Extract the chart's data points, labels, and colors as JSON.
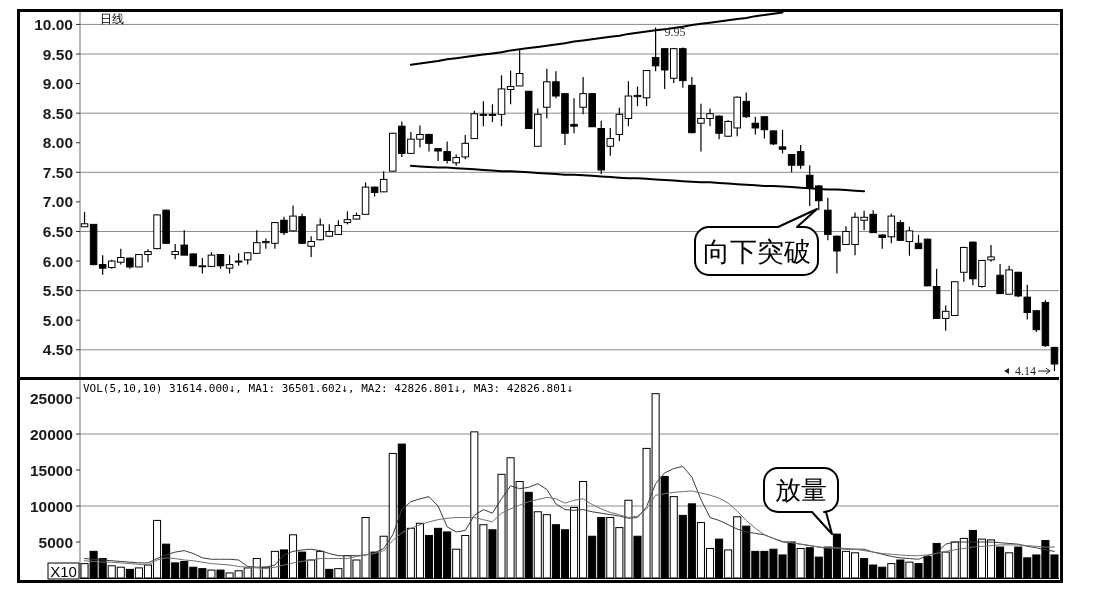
{
  "chart_data": [
    {
      "type": "candlestick",
      "title": "日线",
      "categories": [
        null,
        null,
        null,
        null,
        null,
        null,
        null,
        null,
        null,
        null,
        null,
        null,
        null,
        null,
        null,
        null,
        null,
        null,
        null,
        null,
        null,
        null,
        null,
        null,
        null,
        null,
        null,
        null,
        null,
        null,
        null,
        null,
        null,
        null,
        null,
        null,
        null,
        null,
        null,
        null,
        null,
        null,
        null,
        null,
        null,
        null,
        null,
        null,
        null,
        null,
        null,
        null,
        null,
        null,
        null,
        null,
        null,
        null,
        null,
        null,
        null,
        null,
        null,
        null,
        null,
        null,
        null,
        null,
        null,
        null,
        null,
        null,
        null,
        null,
        null,
        null,
        null,
        null,
        null,
        null,
        null,
        null,
        null,
        null,
        null,
        null,
        null,
        null,
        null,
        null,
        null,
        null,
        null,
        null,
        null,
        null,
        null,
        null,
        null,
        null,
        null,
        null,
        null,
        null,
        null,
        null,
        null,
        null
      ],
      "ohlc": [
        [
          6.58,
          6.83,
          6.58,
          6.63
        ],
        [
          6.62,
          6.62,
          5.93,
          5.94
        ],
        [
          5.94,
          6.1,
          5.77,
          5.88
        ],
        [
          5.89,
          6.02,
          5.87,
          6.0
        ],
        [
          5.98,
          6.21,
          5.94,
          6.06
        ],
        [
          6.05,
          6.06,
          5.87,
          5.9
        ],
        [
          5.9,
          6.11,
          5.9,
          6.11
        ],
        [
          6.11,
          6.2,
          5.98,
          6.16
        ],
        [
          6.21,
          6.79,
          6.2,
          6.78
        ],
        [
          6.86,
          6.87,
          6.29,
          6.3
        ],
        [
          6.11,
          6.29,
          6.03,
          6.16
        ],
        [
          6.27,
          6.52,
          6.1,
          6.1
        ],
        [
          6.12,
          6.13,
          5.92,
          5.92
        ],
        [
          5.92,
          6.05,
          5.79,
          5.92
        ],
        [
          5.91,
          6.15,
          5.91,
          6.1
        ],
        [
          6.11,
          6.11,
          5.87,
          5.92
        ],
        [
          5.88,
          6.1,
          5.79,
          5.94
        ],
        [
          5.99,
          6.13,
          5.92,
          6.0
        ],
        [
          6.02,
          6.15,
          5.94,
          6.14
        ],
        [
          6.13,
          6.52,
          6.13,
          6.31
        ],
        [
          6.31,
          6.38,
          6.21,
          6.33
        ],
        [
          6.3,
          6.66,
          6.21,
          6.65
        ],
        [
          6.69,
          6.75,
          6.44,
          6.48
        ],
        [
          6.51,
          6.94,
          6.5,
          6.76
        ],
        [
          6.75,
          6.8,
          6.29,
          6.3
        ],
        [
          6.25,
          6.42,
          6.07,
          6.33
        ],
        [
          6.36,
          6.72,
          6.35,
          6.61
        ],
        [
          6.42,
          6.62,
          6.41,
          6.5
        ],
        [
          6.45,
          6.69,
          6.45,
          6.6
        ],
        [
          6.65,
          6.84,
          6.62,
          6.7
        ],
        [
          6.71,
          6.82,
          6.7,
          6.77
        ],
        [
          6.79,
          7.33,
          6.79,
          7.25
        ],
        [
          7.25,
          7.26,
          7.09,
          7.16
        ],
        [
          7.17,
          7.52,
          7.17,
          7.38
        ],
        [
          7.52,
          8.17,
          7.52,
          8.16
        ],
        [
          8.28,
          8.36,
          7.76,
          7.82
        ],
        [
          7.82,
          8.18,
          7.82,
          8.06
        ],
        [
          8.06,
          8.29,
          7.92,
          8.14
        ],
        [
          8.14,
          8.15,
          7.85,
          7.99
        ],
        [
          7.9,
          7.9,
          7.69,
          7.86
        ],
        [
          7.85,
          8.02,
          7.65,
          7.7
        ],
        [
          7.66,
          7.8,
          7.61,
          7.75
        ],
        [
          7.76,
          8.13,
          7.72,
          7.99
        ],
        [
          8.07,
          8.54,
          8.07,
          8.49
        ],
        [
          8.47,
          8.7,
          8.28,
          8.48
        ],
        [
          8.48,
          8.65,
          8.35,
          8.47
        ],
        [
          8.48,
          9.14,
          8.28,
          8.91
        ],
        [
          8.9,
          9.22,
          8.65,
          8.95
        ],
        [
          8.96,
          9.59,
          8.96,
          9.17
        ],
        [
          8.87,
          8.87,
          8.24,
          8.24
        ],
        [
          7.94,
          8.58,
          7.94,
          8.48
        ],
        [
          8.6,
          9.25,
          8.41,
          9.03
        ],
        [
          9.03,
          9.21,
          8.75,
          8.79
        ],
        [
          8.83,
          8.84,
          7.96,
          8.16
        ],
        [
          8.31,
          8.75,
          8.16,
          8.28
        ],
        [
          8.6,
          9.11,
          8.48,
          8.83
        ],
        [
          8.83,
          8.84,
          8.27,
          8.27
        ],
        [
          8.24,
          8.37,
          7.47,
          7.54
        ],
        [
          7.94,
          8.25,
          7.78,
          8.07
        ],
        [
          8.14,
          8.59,
          8.03,
          8.48
        ],
        [
          8.41,
          9.04,
          8.28,
          8.79
        ],
        [
          8.78,
          8.95,
          8.62,
          8.8
        ],
        [
          8.76,
          9.23,
          8.62,
          9.22
        ],
        [
          9.44,
          9.95,
          9.21,
          9.3
        ],
        [
          9.59,
          9.6,
          8.91,
          9.23
        ],
        [
          9.09,
          9.6,
          9.01,
          9.59
        ],
        [
          9.59,
          9.61,
          8.93,
          9.05
        ],
        [
          8.97,
          9.11,
          8.16,
          8.17
        ],
        [
          8.33,
          8.66,
          7.85,
          8.41
        ],
        [
          8.41,
          8.58,
          8.28,
          8.49
        ],
        [
          8.45,
          8.46,
          8.06,
          8.16
        ],
        [
          8.11,
          8.38,
          8.1,
          8.36
        ],
        [
          8.25,
          8.78,
          8.11,
          8.77
        ],
        [
          8.7,
          8.85,
          8.42,
          8.44
        ],
        [
          8.33,
          8.44,
          8.14,
          8.25
        ],
        [
          8.44,
          8.45,
          8.07,
          8.22
        ],
        [
          8.2,
          8.21,
          7.96,
          7.98
        ],
        [
          7.93,
          8.22,
          7.82,
          7.89
        ],
        [
          7.8,
          7.81,
          7.5,
          7.62
        ],
        [
          7.85,
          7.96,
          7.56,
          7.62
        ],
        [
          7.45,
          7.62,
          6.93,
          7.24
        ],
        [
          7.27,
          7.28,
          6.86,
          7.02
        ],
        [
          6.86,
          7.07,
          6.35,
          6.45
        ],
        [
          6.42,
          6.43,
          5.79,
          6.17
        ],
        [
          6.28,
          6.59,
          6.27,
          6.5
        ],
        [
          6.28,
          6.82,
          6.1,
          6.74
        ],
        [
          6.69,
          6.85,
          6.52,
          6.74
        ],
        [
          6.79,
          6.86,
          6.48,
          6.48
        ],
        [
          6.44,
          6.45,
          6.21,
          6.4
        ],
        [
          6.41,
          6.8,
          6.3,
          6.76
        ],
        [
          6.65,
          6.69,
          6.34,
          6.35
        ],
        [
          6.33,
          6.58,
          6.09,
          6.51
        ],
        [
          6.3,
          6.44,
          6.21,
          6.21
        ],
        [
          6.37,
          6.38,
          5.58,
          5.58
        ],
        [
          5.57,
          5.87,
          5.02,
          5.03
        ],
        [
          5.03,
          5.25,
          4.82,
          5.15
        ],
        [
          5.08,
          5.66,
          5.08,
          5.65
        ],
        [
          5.81,
          6.24,
          5.65,
          6.23
        ],
        [
          6.32,
          6.33,
          5.59,
          5.7
        ],
        [
          5.57,
          6.02,
          5.55,
          6.01
        ],
        [
          6.02,
          6.27,
          5.99,
          6.07
        ],
        [
          5.76,
          5.95,
          5.45,
          5.45
        ],
        [
          5.44,
          5.92,
          5.44,
          5.85
        ],
        [
          5.81,
          5.82,
          5.39,
          5.41
        ],
        [
          5.39,
          5.6,
          5.01,
          5.13
        ],
        [
          5.16,
          5.17,
          4.8,
          4.84
        ],
        [
          5.3,
          5.34,
          4.55,
          4.57
        ],
        [
          4.54,
          4.55,
          4.14,
          4.26
        ]
      ],
      "series": [
        {
          "type": "line",
          "color": "#000000",
          "values": [
            null,
            null,
            null,
            null,
            null,
            null,
            null,
            null,
            null,
            null,
            null,
            null,
            null,
            null,
            null,
            null,
            null,
            null,
            null,
            null,
            null,
            null,
            null,
            null,
            null,
            null,
            null,
            null,
            null,
            null,
            null,
            null,
            null,
            null,
            null,
            null,
            9.32,
            9.34,
            9.36,
            9.38,
            9.41,
            9.43,
            9.45,
            9.47,
            9.49,
            9.51,
            9.53,
            9.56,
            9.58,
            9.6,
            9.62,
            9.64,
            9.66,
            9.68,
            9.71,
            9.73,
            9.75,
            9.77,
            9.79,
            9.81,
            9.84,
            9.86,
            9.88,
            9.9,
            9.92,
            9.94,
            9.96,
            9.99,
            10.01,
            10.03,
            10.05,
            10.07,
            10.09,
            10.11,
            10.14,
            10.16,
            10.18,
            10.2,
            null,
            null,
            null,
            null,
            null,
            null,
            null,
            null,
            null,
            null,
            null,
            null,
            null,
            null,
            null,
            null,
            null,
            null,
            null,
            null,
            null,
            null,
            null,
            null,
            null,
            null,
            null,
            null,
            null,
            null
          ]
        },
        {
          "type": "line",
          "color": "#000000",
          "values": [
            null,
            null,
            null,
            null,
            null,
            null,
            null,
            null,
            null,
            null,
            null,
            null,
            null,
            null,
            null,
            null,
            null,
            null,
            null,
            null,
            null,
            null,
            null,
            null,
            null,
            null,
            null,
            null,
            null,
            null,
            null,
            null,
            null,
            null,
            null,
            null,
            7.61,
            7.6,
            7.59,
            7.58,
            7.58,
            7.57,
            7.56,
            7.55,
            7.54,
            7.53,
            7.52,
            7.52,
            7.51,
            7.5,
            7.49,
            7.48,
            7.47,
            7.46,
            7.46,
            7.45,
            7.44,
            7.43,
            7.42,
            7.41,
            7.4,
            7.4,
            7.39,
            7.38,
            7.37,
            7.36,
            7.35,
            7.34,
            7.33,
            7.33,
            7.32,
            7.31,
            7.3,
            7.29,
            7.28,
            7.27,
            7.27,
            7.26,
            7.25,
            7.24,
            7.23,
            7.22,
            7.21,
            7.21,
            7.2,
            7.19,
            7.18,
            null,
            null,
            null,
            null,
            null,
            null,
            null,
            null,
            null,
            null,
            null,
            null,
            null,
            null,
            null,
            null,
            null,
            null,
            null,
            null,
            null
          ]
        }
      ],
      "ylim": [
        4.04,
        10.21
      ],
      "yticks": [
        {
          "value": 10,
          "label": "10.00"
        },
        {
          "value": 9.5,
          "label": "9.50"
        },
        {
          "value": 9,
          "label": "9.00"
        },
        {
          "value": 8.5,
          "label": "8.50"
        },
        {
          "value": 8,
          "label": "8.00"
        },
        {
          "value": 7.5,
          "label": "7.50"
        },
        {
          "value": 7,
          "label": "7.00"
        },
        {
          "value": 6.5,
          "label": "6.50"
        },
        {
          "value": 6,
          "label": "6.00"
        },
        {
          "value": 5.5,
          "label": "5.50"
        },
        {
          "value": 5,
          "label": "5.00"
        },
        {
          "value": 4.5,
          "label": "4.50"
        }
      ],
      "ref_lines": [
        {
          "axis": "y",
          "value": 10,
          "color": "#8c8c8c"
        },
        {
          "axis": "y",
          "value": 9.5,
          "color": "#8c8c8c"
        },
        {
          "axis": "y",
          "value": 8.5,
          "color": "#8c8c8c"
        },
        {
          "axis": "y",
          "value": 7.5,
          "color": "#8c8c8c"
        },
        {
          "axis": "y",
          "value": 6.5,
          "color": "#8c8c8c"
        },
        {
          "axis": "y",
          "value": 5.5,
          "color": "#8c8c8c"
        },
        {
          "axis": "y",
          "value": 4.5,
          "color": "#8c8c8c"
        }
      ],
      "annotations": [
        {
          "text": "9.95",
          "y": 9.95
        },
        "4.14",
        "向下突破"
      ],
      "tick_labels": "y"
    },
    {
      "type": "bar",
      "categories": [
        null,
        null,
        null,
        null,
        null,
        null,
        null,
        null,
        null,
        null,
        null,
        null,
        null,
        null,
        null,
        null,
        null,
        null,
        null,
        null,
        null,
        null,
        null,
        null,
        null,
        null,
        null,
        null,
        null,
        null,
        null,
        null,
        null,
        null,
        null,
        null,
        null,
        null,
        null,
        null,
        null,
        null,
        null,
        null,
        null,
        null,
        null,
        null,
        null,
        null,
        null,
        null,
        null,
        null,
        null,
        null,
        null,
        null,
        null,
        null,
        null,
        null,
        null,
        null,
        null,
        null,
        null,
        null,
        null,
        null,
        null,
        null,
        null,
        null,
        null,
        null,
        null,
        null,
        null,
        null,
        null,
        null,
        null,
        null,
        null,
        null,
        null,
        null,
        null,
        null,
        null,
        null,
        null,
        null,
        null,
        null,
        null,
        null,
        null,
        null,
        null,
        null,
        null,
        null,
        null,
        null,
        null,
        null
      ],
      "series": [
        {
          "type": "bar",
          "values": [
            2000,
            3700,
            2700,
            1700,
            1500,
            1200,
            1400,
            1800,
            8000,
            4700,
            2100,
            2300,
            1500,
            1300,
            1100,
            1100,
            700,
            1000,
            1400,
            2700,
            1500,
            3700,
            3900,
            6000,
            3600,
            2500,
            3700,
            1200,
            1300,
            3100,
            2500,
            8400,
            3600,
            5800,
            17300,
            18600,
            6900,
            7600,
            5900,
            6900,
            6400,
            4000,
            5900,
            20300,
            7400,
            6700,
            14400,
            16700,
            13400,
            11900,
            9200,
            8800,
            7400,
            6700,
            9800,
            13400,
            5800,
            8400,
            8400,
            7000,
            10800,
            5800,
            18000,
            25600,
            14100,
            11300,
            8700,
            10300,
            7700,
            4100,
            5400,
            3900,
            8500,
            7200,
            3700,
            3700,
            4000,
            3200,
            5000,
            4100,
            4200,
            2900,
            4300,
            6100,
            3700,
            3500,
            2700,
            1800,
            1500,
            2000,
            2500,
            2200,
            2000,
            3000,
            4800,
            3600,
            5000,
            5500,
            6600,
            5400,
            5300,
            4300,
            3500,
            4300,
            2800,
            3200,
            5200,
            3200
          ],
          "colors": [
            "#ffffff",
            "#000000",
            "#000000",
            "#ffffff",
            "#ffffff",
            "#000000",
            "#ffffff",
            "#ffffff",
            "#ffffff",
            "#000000",
            "#000000",
            "#000000",
            "#000000",
            "#000000",
            "#ffffff",
            "#000000",
            "#ffffff",
            "#ffffff",
            "#ffffff",
            "#ffffff",
            "#ffffff",
            "#ffffff",
            "#000000",
            "#ffffff",
            "#000000",
            "#ffffff",
            "#ffffff",
            "#000000",
            "#ffffff",
            "#ffffff",
            "#ffffff",
            "#ffffff",
            "#000000",
            "#ffffff",
            "#ffffff",
            "#000000",
            "#ffffff",
            "#ffffff",
            "#000000",
            "#000000",
            "#000000",
            "#ffffff",
            "#ffffff",
            "#ffffff",
            "#ffffff",
            "#000000",
            "#ffffff",
            "#ffffff",
            "#ffffff",
            "#000000",
            "#ffffff",
            "#ffffff",
            "#000000",
            "#000000",
            "#ffffff",
            "#ffffff",
            "#000000",
            "#000000",
            "#ffffff",
            "#ffffff",
            "#ffffff",
            "#000000",
            "#ffffff",
            "#ffffff",
            "#000000",
            "#ffffff",
            "#000000",
            "#000000",
            "#ffffff",
            "#ffffff",
            "#000000",
            "#ffffff",
            "#ffffff",
            "#000000",
            "#000000",
            "#000000",
            "#000000",
            "#000000",
            "#000000",
            "#ffffff",
            "#000000",
            "#000000",
            "#000000",
            "#000000",
            "#ffffff",
            "#ffffff",
            "#000000",
            "#000000",
            "#000000",
            "#ffffff",
            "#000000",
            "#ffffff",
            "#000000",
            "#000000",
            "#000000",
            "#ffffff",
            "#ffffff",
            "#ffffff",
            "#000000",
            "#ffffff",
            "#ffffff",
            "#000000",
            "#ffffff",
            "#000000",
            "#000000",
            "#000000",
            "#000000",
            "#000000"
          ]
        },
        {
          "type": "line",
          "color": "#3c3c3c",
          "values": [
            2700,
            2600,
            2500,
            2400,
            2300,
            2200,
            2100,
            2100,
            2700,
            3200,
            3600,
            3800,
            3400,
            2800,
            2600,
            2600,
            2600,
            2500,
            1600,
            1500,
            1500,
            1800,
            3200,
            3700,
            3900,
            4000,
            3800,
            3400,
            3100,
            3100,
            3100,
            3200,
            3500,
            4100,
            6000,
            9500,
            10600,
            11000,
            11300,
            10000,
            7100,
            6400,
            6600,
            8700,
            9500,
            9000,
            11000,
            12800,
            12400,
            12600,
            13100,
            12300,
            10300,
            9500,
            9400,
            9500,
            9200,
            9000,
            8800,
            8600,
            8300,
            8400,
            9900,
            13100,
            14600,
            15200,
            15500,
            14000,
            10900,
            8400,
            8000,
            7400,
            6800,
            6400,
            6200,
            6000,
            5500,
            5000,
            4900,
            4700,
            4500,
            4300,
            4100,
            4100,
            4000,
            4000,
            4000,
            3600,
            3300,
            3000,
            2800,
            2700,
            2600,
            3100,
            3500,
            4700,
            5000,
            5000,
            5000,
            5000,
            5000,
            4900,
            4800,
            4700,
            4400,
            4200,
            3900,
            3700
          ]
        },
        {
          "type": "line",
          "color": "#707070",
          "values": [
            2400,
            2300,
            2200,
            2200,
            2100,
            2000,
            1900,
            1800,
            2500,
            2800,
            2700,
            2500,
            2400,
            2200,
            2000,
            1900,
            1800,
            1600,
            1500,
            1400,
            1300,
            1500,
            1800,
            2100,
            2300,
            2500,
            2700,
            2700,
            2700,
            2700,
            3000,
            3200,
            3400,
            3800,
            5200,
            6300,
            6900,
            7400,
            7800,
            8100,
            8300,
            8400,
            8400,
            8400,
            8100,
            7800,
            9000,
            9600,
            10100,
            10600,
            10900,
            11200,
            11000,
            10400,
            10800,
            11000,
            10200,
            9600,
            9100,
            8800,
            8400,
            8600,
            9600,
            11500,
            11700,
            11900,
            12000,
            12100,
            11800,
            11500,
            11100,
            10400,
            9300,
            8000,
            6900,
            6000,
            5500,
            5100,
            4900,
            4700,
            4500,
            4300,
            4200,
            4200,
            4100,
            4000,
            3800,
            3600,
            3400,
            3300,
            3200,
            3100,
            3100,
            3200,
            3400,
            3700,
            3900,
            4100,
            4300,
            4400,
            4500,
            4600,
            4600,
            4600,
            4500,
            4400,
            4300,
            4300
          ]
        }
      ],
      "ylim": [
        0,
        27500
      ],
      "yticks": [
        5000,
        10000,
        15000,
        20000,
        25000
      ],
      "ref_lines": [
        {
          "axis": "y",
          "value": 20000,
          "color": "#8c8c8c"
        },
        {
          "axis": "y",
          "value": 10000,
          "color": "#8c8c8c"
        }
      ],
      "annotations": [
        "VOL(5,10,10) 31614.000↓, MA1: 36501.602↓, MA2: 42826.801↓, MA3: 42826.801↓",
        "X10",
        "放量"
      ],
      "tick_labels": "y"
    }
  ]
}
